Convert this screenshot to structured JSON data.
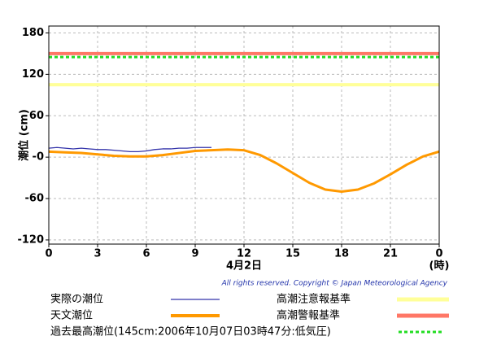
{
  "chart_data": {
    "type": "line",
    "ylabel": "潮位 (cm)",
    "xlabel": "4月2日",
    "xunit": "(時)",
    "copyright": "All rights reserved. Copyright © Japan Meteorological Agency",
    "xlim": [
      0,
      24
    ],
    "xticks": [
      0,
      3,
      6,
      9,
      12,
      15,
      18,
      21,
      {
        "value": 24,
        "label": "0"
      }
    ],
    "ylim": [
      -126,
      190
    ],
    "yticks": [
      -120,
      -60,
      {
        "value": 0,
        "label": "-0"
      },
      60,
      120,
      180
    ],
    "grid": true,
    "series": [
      {
        "name": "実際の潮位",
        "color": "#3333aa",
        "x": [
          0,
          0.5,
          1,
          1.5,
          2,
          2.5,
          3,
          3.5,
          4,
          4.5,
          5,
          5.5,
          6,
          6.5,
          7,
          7.5,
          8,
          8.5,
          9,
          9.5,
          10
        ],
        "values": [
          13,
          14,
          13,
          12,
          13,
          12,
          11,
          11,
          10,
          9,
          8,
          8,
          9,
          11,
          12,
          12,
          13,
          13,
          14,
          14,
          14
        ]
      },
      {
        "name": "天文潮位",
        "color": "#ff9900",
        "x": [
          0,
          1,
          2,
          3,
          4,
          5,
          6,
          7,
          8,
          9,
          10,
          11,
          12,
          13,
          14,
          15,
          16,
          17,
          18,
          19,
          20,
          21,
          22,
          23,
          24
        ],
        "values": [
          8,
          7,
          6,
          4,
          2,
          1,
          1,
          3,
          6,
          9,
          10,
          11,
          10,
          3,
          -9,
          -23,
          -37,
          -47,
          -50,
          -47,
          -38,
          -25,
          -11,
          1,
          8
        ]
      }
    ],
    "reference_lines": [
      {
        "name": "高潮注意報基準",
        "value": 105,
        "color": "#ffff99",
        "dashed": false
      },
      {
        "name": "高潮警報基準",
        "value": 150,
        "color": "#ff7766",
        "dashed": false
      },
      {
        "name": "過去最高潮位(145cm:2006年10月07日03時47分:低気圧)",
        "value": 145,
        "color": "#22dd22",
        "dashed": true
      }
    ]
  }
}
